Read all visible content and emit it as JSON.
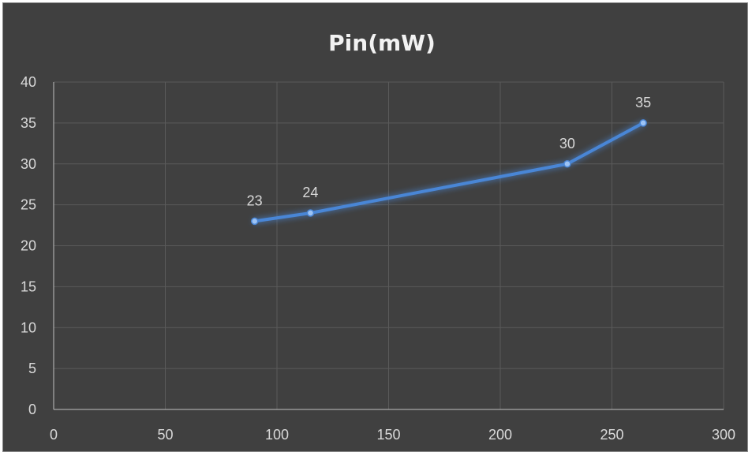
{
  "chart_data": {
    "type": "scatter",
    "title": "Pin(mW)",
    "xlabel": "",
    "ylabel": "",
    "xlim": [
      0,
      300
    ],
    "ylim": [
      0,
      40
    ],
    "x_ticks": [
      0,
      50,
      100,
      150,
      200,
      250,
      300
    ],
    "y_ticks": [
      0,
      5,
      10,
      15,
      20,
      25,
      30,
      35,
      40
    ],
    "grid": true,
    "legend": "none",
    "line_color": "#4a86d6",
    "background_color": "#404040",
    "series": [
      {
        "x": [
          90,
          115,
          230,
          264
        ],
        "values": [
          23,
          24,
          30,
          35
        ],
        "data_labels": [
          "23",
          "24",
          "30",
          "35"
        ]
      }
    ]
  }
}
